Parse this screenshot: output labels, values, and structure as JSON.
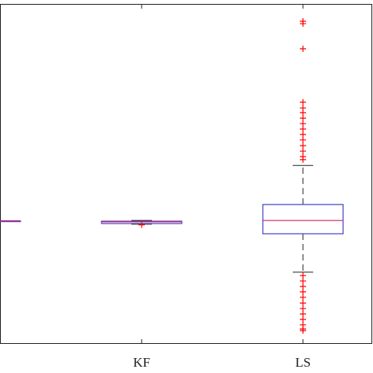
{
  "chart_data": {
    "type": "box",
    "categories": [
      null,
      "KF",
      "LS"
    ],
    "ylim": [
      0,
      100
    ],
    "box_color": "#4040c8",
    "median_color": "#d02060",
    "outlier_color": "#ff0000",
    "boxes": [
      {
        "min": 36.0,
        "q1": 36.0,
        "median": 36.1,
        "q3": 36.2,
        "max": 36.2,
        "outliers": []
      },
      {
        "min": 35.2,
        "q1": 35.4,
        "median": 35.9,
        "q3": 36.1,
        "max": 36.3,
        "outliers": [
          35.0
        ]
      },
      {
        "min": 21.1,
        "q1": 32.4,
        "median": 36.3,
        "q3": 41.0,
        "max": 52.5,
        "outliers": [
          94.9,
          94.2,
          86.8,
          71.1,
          69.4,
          68.0,
          66.4,
          64.8,
          63.2,
          61.6,
          60.0,
          58.3,
          56.7,
          55.1,
          54.2,
          20.1,
          18.5,
          16.9,
          15.3,
          13.7,
          12.0,
          10.4,
          8.8,
          7.2,
          5.6,
          4.4,
          3.9
        ]
      }
    ]
  }
}
